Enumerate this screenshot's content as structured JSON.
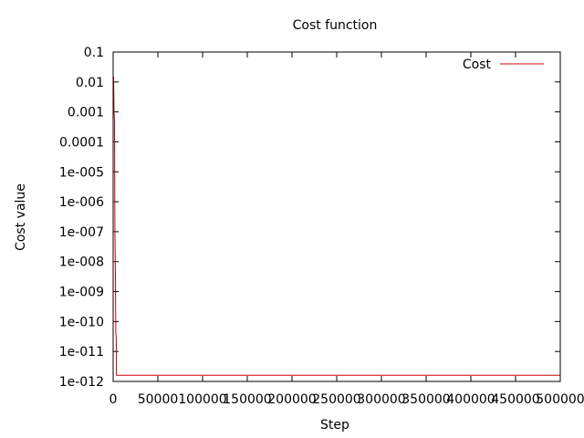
{
  "chart_data": {
    "type": "line",
    "title": "Cost function",
    "xlabel": "Step",
    "ylabel": "Cost value",
    "xlim": [
      0,
      500000
    ],
    "ylim": [
      1e-12,
      0.1
    ],
    "yscale": "log",
    "grid": false,
    "legend": "top-right",
    "x_ticks": [
      {
        "value": 0,
        "label": "0"
      },
      {
        "value": 50000,
        "label": "50000"
      },
      {
        "value": 100000,
        "label": "100000"
      },
      {
        "value": 150000,
        "label": "150000"
      },
      {
        "value": 200000,
        "label": "200000"
      },
      {
        "value": 250000,
        "label": "250000"
      },
      {
        "value": 300000,
        "label": "300000"
      },
      {
        "value": 350000,
        "label": "350000"
      },
      {
        "value": 400000,
        "label": "400000"
      },
      {
        "value": 450000,
        "label": "450000"
      },
      {
        "value": 500000,
        "label": "500000"
      }
    ],
    "y_ticks": [
      {
        "value": 0.1,
        "label": "0.1"
      },
      {
        "value": 0.01,
        "label": "0.01"
      },
      {
        "value": 0.001,
        "label": "0.001"
      },
      {
        "value": 0.0001,
        "label": "0.0001"
      },
      {
        "value": 1e-05,
        "label": "1e-005"
      },
      {
        "value": 1e-06,
        "label": "1e-006"
      },
      {
        "value": 1e-07,
        "label": "1e-007"
      },
      {
        "value": 1e-08,
        "label": "1e-008"
      },
      {
        "value": 1e-09,
        "label": "1e-009"
      },
      {
        "value": 1e-10,
        "label": "1e-010"
      },
      {
        "value": 1e-11,
        "label": "1e-011"
      },
      {
        "value": 1e-12,
        "label": "1e-012"
      }
    ],
    "series": [
      {
        "name": "Cost",
        "color": "#cc0000",
        "points": [
          [
            0,
            0.012
          ],
          [
            500,
            0.015
          ],
          [
            1000,
            0.001
          ],
          [
            1500,
            0.0005
          ],
          [
            2000,
            1e-07
          ],
          [
            2500,
            5e-09
          ],
          [
            3000,
            4e-11
          ],
          [
            3500,
            3e-11
          ],
          [
            3700,
            1.6e-12
          ],
          [
            10000,
            1.6e-12
          ],
          [
            100000,
            1.6e-12
          ],
          [
            250000,
            1.6e-12
          ],
          [
            500000,
            1.6e-12
          ]
        ]
      }
    ]
  }
}
